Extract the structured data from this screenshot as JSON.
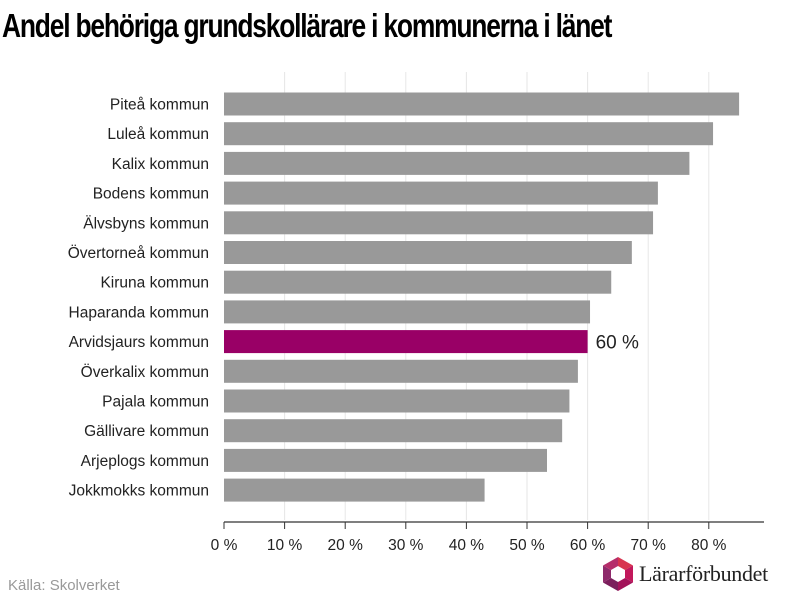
{
  "chart_data": {
    "type": "bar",
    "orientation": "horizontal",
    "title": "Andel behöriga grundskollärare i kommunerna i länet",
    "categories": [
      "Piteå kommun",
      "Luleå kommun",
      "Kalix kommun",
      "Bodens kommun",
      "Älvsbyns kommun",
      "Övertorneå kommun",
      "Kiruna kommun",
      "Haparanda kommun",
      "Arvidsjaurs kommun",
      "Överkalix kommun",
      "Pajala kommun",
      "Gällivare kommun",
      "Arjeplogs kommun",
      "Jokkmokks kommun"
    ],
    "values": [
      85,
      80.7,
      76.8,
      71.6,
      70.8,
      67.3,
      63.9,
      60.4,
      60,
      58.4,
      57,
      55.8,
      53.3,
      43
    ],
    "xlim": [
      0,
      90
    ],
    "xticks": [
      0,
      10,
      20,
      30,
      40,
      50,
      60,
      70,
      80
    ],
    "tick_suffix": " %",
    "grid": true,
    "highlight": {
      "category": "Arvidsjaurs kommun",
      "label": "60 %",
      "color": "#990066"
    },
    "bar_color": "#999999"
  },
  "footer": {
    "source": "Källa: Skolverket",
    "logo_text": "Lärarförbundet"
  },
  "colors": {
    "highlight": "#990066",
    "bar": "#999999",
    "logo_pink": "#c2185b",
    "logo_purple": "#7b1f5c",
    "logo_red": "#d8344f"
  }
}
